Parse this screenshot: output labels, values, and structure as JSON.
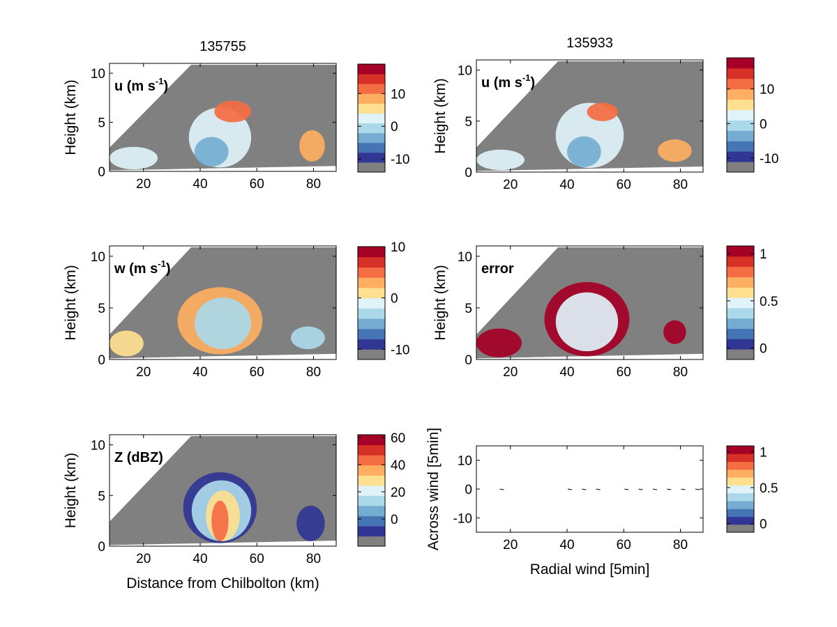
{
  "figure": {
    "colormap": [
      "#808080",
      "#313695",
      "#4575b4",
      "#74add1",
      "#abd9e9",
      "#e0f3f8",
      "#fee090",
      "#fdae61",
      "#f46d43",
      "#d73027",
      "#a50026"
    ],
    "colors": {
      "background": "#808080",
      "frame": "#000000"
    },
    "xlabel_distance": "Distance from Chilbolton (km)",
    "ylabel_height": "Height (km)",
    "ylabel_across": "Across wind [5min]",
    "xlabel_radial": "Radial wind [5min]"
  },
  "chart_data": [
    {
      "id": "u1",
      "type": "heatmap",
      "title": "135755",
      "label": "u (m s",
      "label_sup": "-1",
      "label_suffix": ")",
      "ylabel": "Height (km)",
      "xlabel": "",
      "xlim": [
        8,
        88
      ],
      "ylim": [
        0,
        11
      ],
      "xticks": [
        "20",
        "40",
        "60",
        "80"
      ],
      "yticks": [
        "0",
        "5",
        "10"
      ],
      "colorbar": {
        "min": -14,
        "max": 19,
        "ticks": [
          "-10",
          "0",
          "10"
        ]
      },
      "blobs": [
        {
          "x": [
            36,
            58
          ],
          "y": [
            0.4,
            6.5
          ],
          "value": 2
        },
        {
          "x": [
            45,
            58
          ],
          "y": [
            5.0,
            7.2
          ],
          "value": 12
        },
        {
          "x": [
            38,
            50
          ],
          "y": [
            0.5,
            3.5
          ],
          "value": -3
        },
        {
          "x": [
            75,
            84
          ],
          "y": [
            1.0,
            4.2
          ],
          "value": 7
        },
        {
          "x": [
            8,
            25
          ],
          "y": [
            0.2,
            2.5
          ],
          "value": 3
        }
      ]
    },
    {
      "id": "u2",
      "type": "heatmap",
      "title": "135933",
      "label": "u (m s",
      "label_sup": "-1",
      "label_suffix": ")",
      "ylabel": "Height (km)",
      "xlabel": "",
      "xlim": [
        8,
        88
      ],
      "ylim": [
        0,
        11
      ],
      "xticks": [
        "20",
        "40",
        "60",
        "80"
      ],
      "yticks": [
        "0",
        "5",
        "10"
      ],
      "colorbar": {
        "min": -14,
        "max": 19,
        "ticks": [
          "-10",
          "0",
          "10"
        ]
      },
      "blobs": [
        {
          "x": [
            36,
            60
          ],
          "y": [
            0.4,
            6.8
          ],
          "value": 2
        },
        {
          "x": [
            47,
            58
          ],
          "y": [
            5.0,
            6.8
          ],
          "value": 12
        },
        {
          "x": [
            40,
            52
          ],
          "y": [
            0.5,
            3.5
          ],
          "value": -3
        },
        {
          "x": [
            72,
            84
          ],
          "y": [
            1.0,
            3.2
          ],
          "value": 7
        },
        {
          "x": [
            8,
            25
          ],
          "y": [
            0.2,
            2.2
          ],
          "value": 3
        }
      ]
    },
    {
      "id": "w",
      "type": "heatmap",
      "title": "",
      "label": "w (m s",
      "label_sup": "-1",
      "label_suffix": ")",
      "ylabel": "Height (km)",
      "xlabel": "",
      "xlim": [
        8,
        88
      ],
      "ylim": [
        0,
        11
      ],
      "xticks": [
        "20",
        "40",
        "60",
        "80"
      ],
      "yticks": [
        "0",
        "5",
        "10"
      ],
      "colorbar": {
        "min": -12,
        "max": 10,
        "ticks": [
          "-10",
          "0",
          "10"
        ]
      },
      "blobs": [
        {
          "x": [
            32,
            62
          ],
          "y": [
            0.5,
            7.0
          ],
          "value": 3
        },
        {
          "x": [
            38,
            58
          ],
          "y": [
            1.0,
            6.0
          ],
          "value": -3
        },
        {
          "x": [
            72,
            84
          ],
          "y": [
            1.0,
            3.2
          ],
          "value": -4
        },
        {
          "x": [
            8,
            20
          ],
          "y": [
            0.3,
            2.8
          ],
          "value": 1
        }
      ]
    },
    {
      "id": "error",
      "type": "heatmap",
      "title": "",
      "label": "error",
      "label_sup": "",
      "label_suffix": "",
      "ylabel": "Height (km)",
      "xlabel": "",
      "xlim": [
        8,
        88
      ],
      "ylim": [
        0,
        11
      ],
      "xticks": [
        "20",
        "40",
        "60",
        "80"
      ],
      "yticks": [
        "0",
        "5",
        "10"
      ],
      "colorbar": {
        "min": -0.12,
        "max": 1.08,
        "ticks": [
          "0",
          "0.5",
          "1"
        ]
      },
      "blobs": [
        {
          "x": [
            32,
            62
          ],
          "y": [
            0.3,
            7.5
          ],
          "value": 1.0
        },
        {
          "x": [
            36,
            58
          ],
          "y": [
            0.8,
            6.5
          ],
          "value": 0.45
        },
        {
          "x": [
            74,
            82
          ],
          "y": [
            1.5,
            3.8
          ],
          "value": 1.0
        },
        {
          "x": [
            8,
            24
          ],
          "y": [
            0.2,
            3.0
          ],
          "value": 1.0
        }
      ]
    },
    {
      "id": "z",
      "type": "heatmap",
      "title": "",
      "label": "Z (dBZ)",
      "label_sup": "",
      "label_suffix": "",
      "ylabel": "Height (km)",
      "xlabel": "Distance from Chilbolton (km)",
      "xlim": [
        8,
        88
      ],
      "ylim": [
        0,
        11
      ],
      "xticks": [
        "20",
        "40",
        "60",
        "80"
      ],
      "yticks": [
        "0",
        "5",
        "10"
      ],
      "colorbar": {
        "min": -20,
        "max": 62,
        "ticks": [
          "0",
          "20",
          "40",
          "60"
        ]
      },
      "blobs": [
        {
          "x": [
            34,
            60
          ],
          "y": [
            0.3,
            7.3
          ],
          "value": -10
        },
        {
          "x": [
            37,
            58
          ],
          "y": [
            0.5,
            6.5
          ],
          "value": 15
        },
        {
          "x": [
            42,
            54
          ],
          "y": [
            0.5,
            5.5
          ],
          "value": 30
        },
        {
          "x": [
            44,
            50
          ],
          "y": [
            0.5,
            4.5
          ],
          "value": 42
        },
        {
          "x": [
            74,
            84
          ],
          "y": [
            0.5,
            4.0
          ],
          "value": -8
        }
      ]
    },
    {
      "id": "wind",
      "type": "scatter",
      "title": "",
      "label": "",
      "label_sup": "",
      "label_suffix": "",
      "ylabel": "Across wind [5min]",
      "xlabel": "Radial wind [5min]",
      "xlim": [
        8,
        88
      ],
      "ylim": [
        -15,
        15
      ],
      "xticks": [
        "20",
        "40",
        "60",
        "80"
      ],
      "yticks": [
        "-10",
        "0",
        "10"
      ],
      "colorbar": {
        "min": -0.12,
        "max": 1.08,
        "ticks": [
          "0",
          "0.5",
          "1"
        ]
      },
      "points": [
        {
          "x": 17,
          "y": 0
        },
        {
          "x": 41,
          "y": 0
        },
        {
          "x": 46,
          "y": 0
        },
        {
          "x": 51,
          "y": 0
        },
        {
          "x": 61,
          "y": 0
        },
        {
          "x": 66,
          "y": 0
        },
        {
          "x": 71,
          "y": 0
        },
        {
          "x": 76,
          "y": 0
        },
        {
          "x": 81,
          "y": 0
        },
        {
          "x": 86,
          "y": 0
        }
      ]
    }
  ]
}
